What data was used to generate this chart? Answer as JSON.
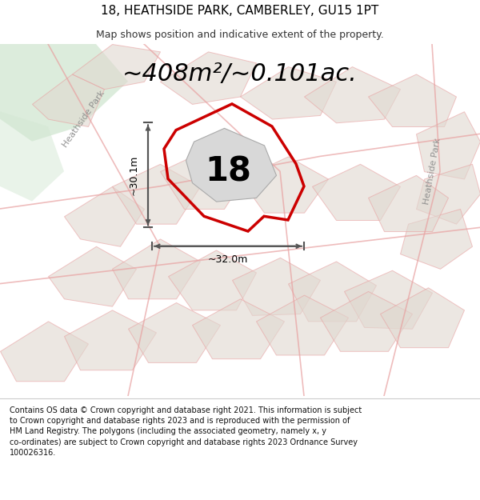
{
  "title": "18, HEATHSIDE PARK, CAMBERLEY, GU15 1PT",
  "subtitle": "Map shows position and indicative extent of the property.",
  "area_text": "~408m²/~0.101ac.",
  "number_label": "18",
  "dim_vertical": "~30.1m",
  "dim_horizontal": "~32.0m",
  "street_label_left": "Heathside Park",
  "street_label_right": "Heathside Park",
  "footer_text": "Contains OS data © Crown copyright and database right 2021. This information is subject\nto Crown copyright and database rights 2023 and is reproduced with the permission of\nHM Land Registry. The polygons (including the associated geometry, namely x, y\nco-ordinates) are subject to Crown copyright and database rights 2023 Ordnance Survey\n100026316.",
  "map_bg": "#f0f0eb",
  "plot_outline_color": "#cc0000",
  "other_plot_color": "#e0d8d0",
  "road_line_color": "#e8a0a0",
  "dim_line_color": "#555555",
  "green_area_color": "#d4e8d4",
  "title_fontsize": 11,
  "subtitle_fontsize": 9,
  "area_fontsize": 22,
  "number_fontsize": 30,
  "footer_fontsize": 7.0
}
